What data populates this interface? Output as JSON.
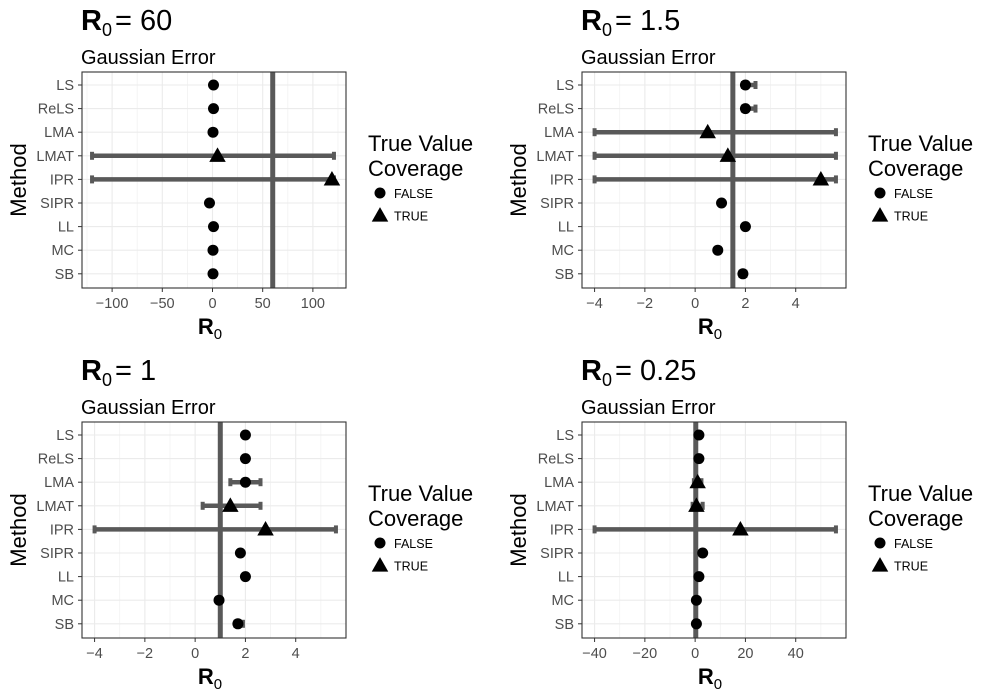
{
  "legend": {
    "title_line1": "True Value",
    "title_line2": "Coverage",
    "items": [
      {
        "label": "FALSE",
        "shape": "circle"
      },
      {
        "label": "TRUE",
        "shape": "triangle"
      }
    ]
  },
  "chart_data": [
    {
      "type": "forest",
      "title": "R",
      "title_subscript": "0",
      "title_value": "= 60",
      "subtitle": "Gaussian Error",
      "xlabel": "R",
      "xlabel_subscript": "0",
      "ylabel": "Method",
      "xlim": [
        -130,
        133
      ],
      "xticks": [
        -100,
        -50,
        0,
        50,
        100
      ],
      "reference_line": 60,
      "grid": true,
      "methods": [
        "LS",
        "ReLS",
        "LMA",
        "LMAT",
        "IPR",
        "SIPR",
        "LL",
        "MC",
        "SB"
      ],
      "estimates": [
        1,
        1,
        0.5,
        5,
        119,
        -3,
        1,
        0.5,
        0.5
      ],
      "ci_low": [
        null,
        null,
        null,
        -120,
        -120,
        null,
        null,
        null,
        null
      ],
      "ci_high": [
        null,
        null,
        null,
        121,
        121,
        null,
        null,
        null,
        null
      ],
      "coverage": [
        false,
        false,
        false,
        true,
        true,
        false,
        false,
        false,
        false
      ]
    },
    {
      "type": "forest",
      "title": "R",
      "title_subscript": "0",
      "title_value": "= 1.5",
      "subtitle": "Gaussian Error",
      "xlabel": "R",
      "xlabel_subscript": "0",
      "ylabel": "Method",
      "xlim": [
        -4.5,
        6.0
      ],
      "xticks": [
        -4,
        -2,
        0,
        2,
        4
      ],
      "reference_line": 1.5,
      "grid": true,
      "methods": [
        "LS",
        "ReLS",
        "LMA",
        "LMAT",
        "IPR",
        "SIPR",
        "LL",
        "MC",
        "SB"
      ],
      "estimates": [
        2.0,
        2.0,
        0.5,
        1.3,
        5.0,
        1.05,
        2.0,
        0.9,
        1.9
      ],
      "ci_low": [
        1.9,
        1.9,
        -4.0,
        -4.0,
        -4.0,
        null,
        null,
        null,
        1.8
      ],
      "ci_high": [
        2.4,
        2.4,
        5.6,
        5.6,
        5.6,
        null,
        null,
        null,
        2.0
      ],
      "coverage": [
        false,
        false,
        true,
        true,
        true,
        false,
        false,
        false,
        false
      ]
    },
    {
      "type": "forest",
      "title": "R",
      "title_subscript": "0",
      "title_value": "= 1",
      "subtitle": "Gaussian Error",
      "xlabel": "R",
      "xlabel_subscript": "0",
      "ylabel": "Method",
      "xlim": [
        -4.5,
        6.0
      ],
      "xticks": [
        -4,
        -2,
        0,
        2,
        4
      ],
      "reference_line": 1,
      "grid": true,
      "methods": [
        "LS",
        "ReLS",
        "LMA",
        "LMAT",
        "IPR",
        "SIPR",
        "LL",
        "MC",
        "SB"
      ],
      "estimates": [
        2.0,
        2.0,
        2.0,
        1.4,
        2.8,
        1.8,
        2.0,
        0.95,
        1.7
      ],
      "ci_low": [
        null,
        null,
        1.4,
        0.3,
        -4.0,
        null,
        null,
        null,
        1.6
      ],
      "ci_high": [
        null,
        null,
        2.6,
        2.6,
        5.6,
        null,
        null,
        null,
        1.9
      ],
      "coverage": [
        false,
        false,
        false,
        true,
        true,
        false,
        false,
        false,
        false
      ]
    },
    {
      "type": "forest",
      "title": "R",
      "title_subscript": "0",
      "title_value": "= 0.25",
      "subtitle": "Gaussian Error",
      "xlabel": "R",
      "xlabel_subscript": "0",
      "ylabel": "Method",
      "xlim": [
        -45,
        60
      ],
      "xticks": [
        -40,
        -20,
        0,
        20,
        40
      ],
      "reference_line": 0.25,
      "grid": true,
      "methods": [
        "LS",
        "ReLS",
        "LMA",
        "LMAT",
        "IPR",
        "SIPR",
        "LL",
        "MC",
        "SB"
      ],
      "estimates": [
        1.5,
        1.5,
        1.0,
        0.5,
        18.0,
        3.0,
        1.5,
        0.5,
        0.5
      ],
      "ci_low": [
        null,
        null,
        -0.5,
        -1.0,
        -40,
        null,
        null,
        null,
        null
      ],
      "ci_high": [
        null,
        null,
        2.5,
        3.0,
        56,
        null,
        null,
        null,
        null
      ],
      "coverage": [
        false,
        false,
        true,
        true,
        true,
        false,
        false,
        false,
        false
      ]
    }
  ]
}
